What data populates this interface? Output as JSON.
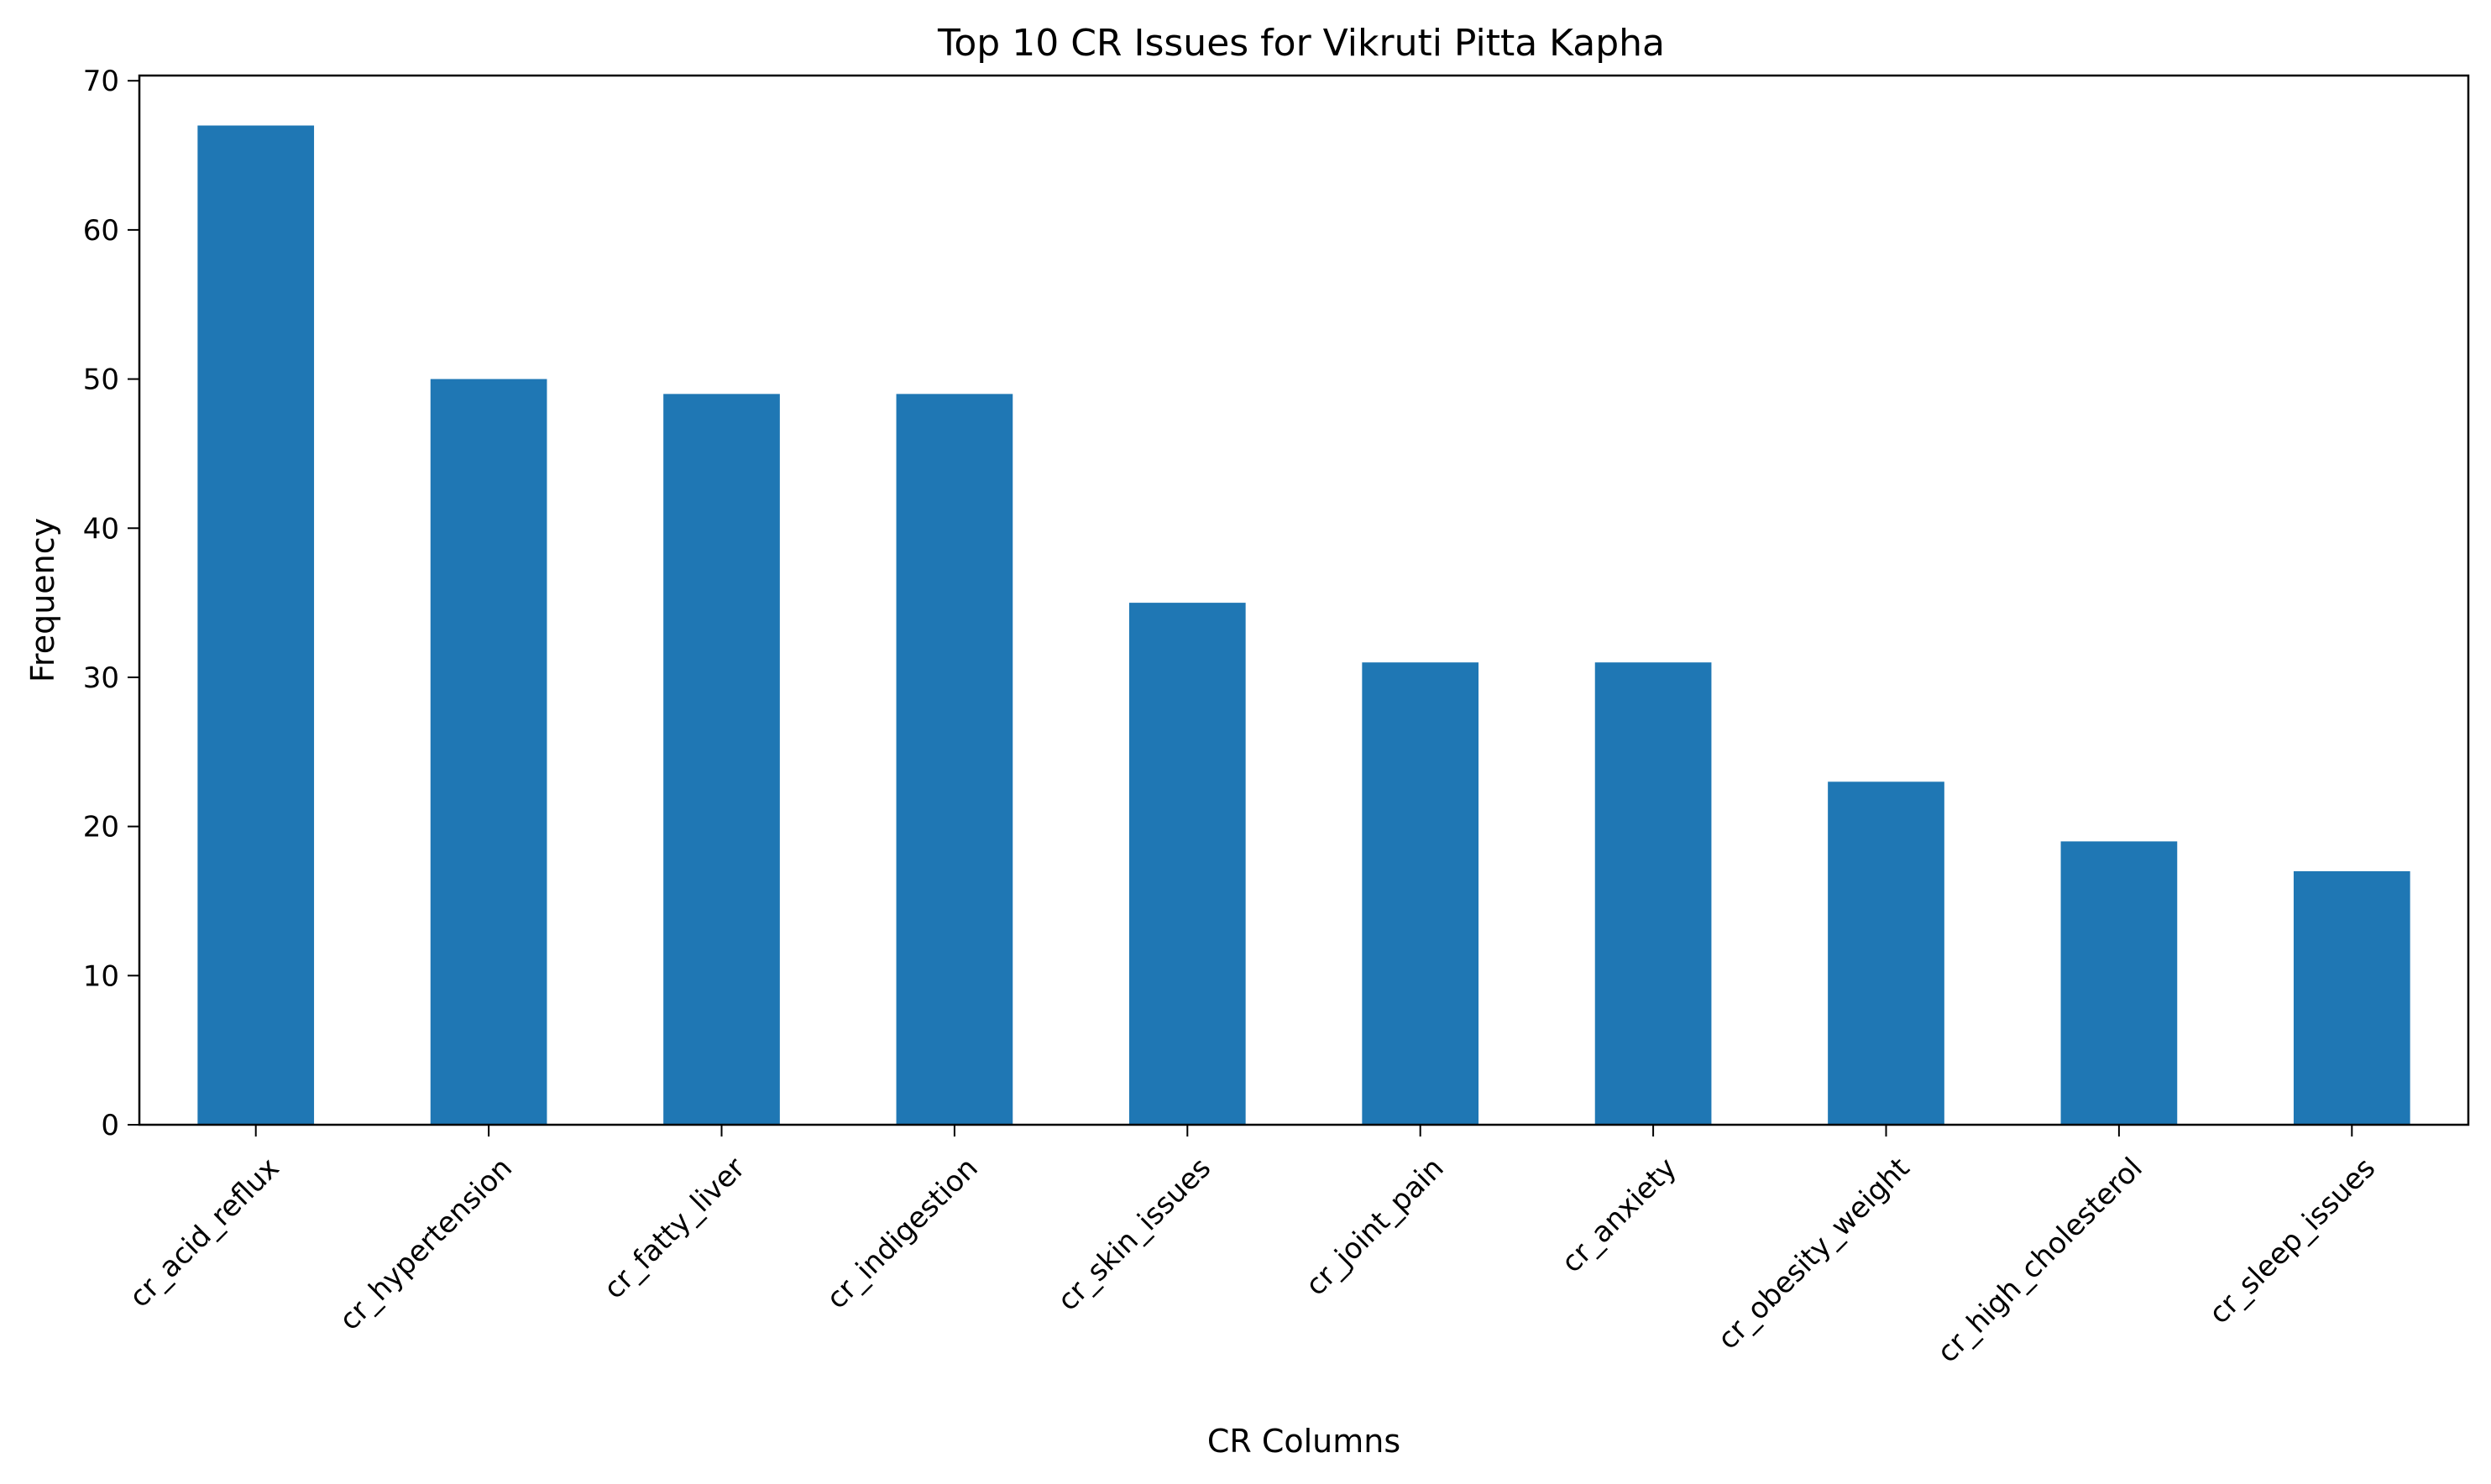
{
  "chart_data": {
    "type": "bar",
    "title": "Top 10 CR Issues for Vikruti Pitta Kapha",
    "xlabel": "CR Columns",
    "ylabel": "Frequency",
    "categories": [
      "cr_acid_reflux",
      "cr_hypertension",
      "cr_fatty_liver",
      "cr_indigestion",
      "cr_skin_issues",
      "cr_joint_pain",
      "cr_anxiety",
      "cr_obesity_weight",
      "cr_high_cholesterol",
      "cr_sleep_issues"
    ],
    "values": [
      67,
      50,
      49,
      49,
      35,
      31,
      31,
      23,
      19,
      17
    ],
    "ylim": [
      0,
      70.35
    ],
    "yticks": [
      0,
      10,
      20,
      30,
      40,
      50,
      60,
      70
    ],
    "bar_color": "#1f77b4",
    "grid": false,
    "legend": "none"
  }
}
